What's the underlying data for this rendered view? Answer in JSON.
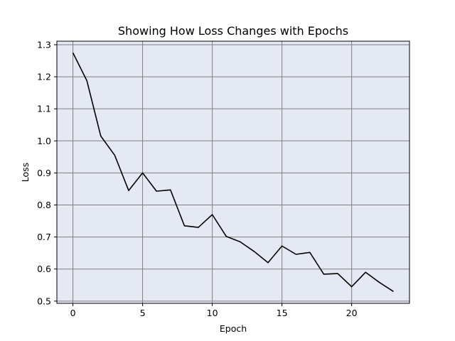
{
  "chart_data": {
    "type": "line",
    "title": "Showing How Loss Changes with Epochs",
    "xlabel": "Epoch",
    "ylabel": "Loss",
    "xlim": [
      -1.15,
      24.15
    ],
    "ylim": [
      0.493,
      1.311
    ],
    "xticks": [
      0,
      5,
      10,
      15,
      20
    ],
    "yticks": [
      0.5,
      0.6,
      0.7,
      0.8,
      0.9,
      1.0,
      1.1,
      1.2,
      1.3
    ],
    "grid": true,
    "background_color": "#e4e9f4",
    "grid_color": "#808080",
    "line_color": "#000000",
    "series": [
      {
        "x": [
          0,
          1,
          2,
          3,
          4,
          5,
          6,
          7,
          8,
          9,
          10,
          11,
          12,
          13,
          14,
          15,
          16,
          17,
          18,
          19,
          20,
          21,
          22,
          23
        ],
        "values": [
          1.275,
          1.188,
          1.015,
          0.955,
          0.845,
          0.9,
          0.843,
          0.847,
          0.735,
          0.73,
          0.77,
          0.702,
          0.685,
          0.655,
          0.62,
          0.672,
          0.646,
          0.652,
          0.584,
          0.586,
          0.545,
          0.59,
          0.558,
          0.53
        ]
      }
    ]
  }
}
